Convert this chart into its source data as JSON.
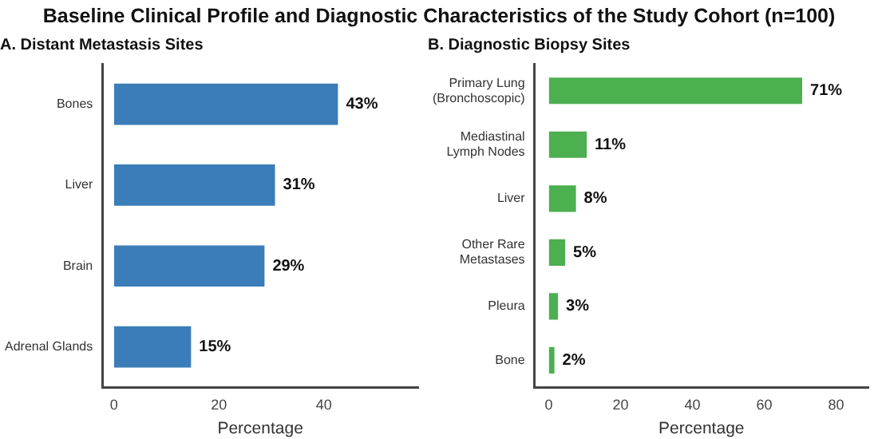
{
  "chart_data": [
    {
      "type": "bar",
      "orientation": "horizontal",
      "title": "A. Distant Metastasis Sites",
      "xlabel": "Percentage",
      "annotations": [
        "Baseline Clinical Profile and Diagnostic Characteristics of the Study Cohort (n=100)"
      ],
      "categories": [
        "Bones",
        "Liver",
        "Brain",
        "Adrenal Glands"
      ],
      "values": [
        43,
        31,
        29,
        15
      ],
      "value_labels": [
        "43%",
        "31%",
        "29%",
        "15%"
      ],
      "color": "#3a7db8",
      "xlim": [
        -2.2,
        58
      ],
      "xticks": [
        0,
        20,
        40
      ],
      "grid": false,
      "legend": false
    },
    {
      "type": "bar",
      "orientation": "horizontal",
      "title": "B. Diagnostic Biopsy Sites",
      "xlabel": "Percentage",
      "categories": [
        "Primary Lung\n(Bronchoscopic)",
        "Mediastinal\nLymph Nodes",
        "Liver",
        "Other Rare\nMetastases",
        "Pleura",
        "Bone"
      ],
      "values": [
        71,
        11,
        8,
        5,
        3,
        2
      ],
      "value_labels": [
        "71%",
        "11%",
        "8%",
        "5%",
        "3%",
        "2%"
      ],
      "color": "#4caf50",
      "xlim": [
        -4,
        89
      ],
      "xticks": [
        0,
        20,
        40,
        60,
        80
      ],
      "grid": false,
      "legend": false
    }
  ]
}
